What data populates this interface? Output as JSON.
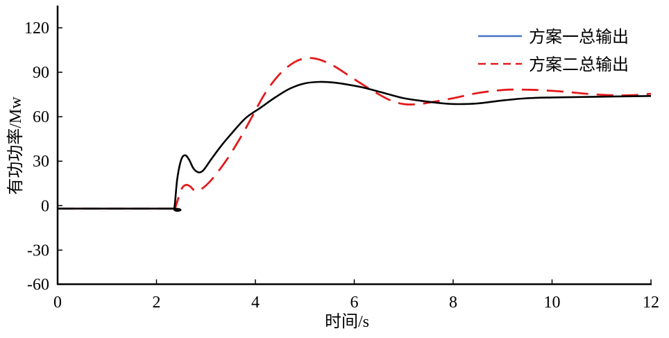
{
  "chart_data": {
    "type": "line",
    "title": "",
    "xlabel": "时间/s",
    "ylabel": "有功功率/Mw",
    "xlim": [
      0,
      12
    ],
    "ylim": [
      -53,
      135
    ],
    "xticks": [
      0,
      2,
      4,
      6,
      8,
      10,
      12
    ],
    "yticks": [
      120,
      90,
      60,
      30,
      0,
      -30,
      -60
    ],
    "grid": false,
    "legend_position": "top-right",
    "series": [
      {
        "name": "方案一总输出",
        "legend_color": "#4472c4",
        "line_color": "#000000",
        "dash": "solid",
        "x": [
          0,
          2.3,
          2.36,
          2.42,
          2.5,
          2.58,
          2.66,
          2.75,
          2.85,
          2.95,
          3.1,
          3.3,
          3.5,
          3.8,
          4.1,
          4.4,
          4.7,
          5.0,
          5.3,
          5.6,
          5.9,
          6.2,
          6.6,
          7.0,
          7.4,
          7.8,
          8.1,
          8.5,
          9.0,
          9.5,
          10.0,
          11.0,
          12.0
        ],
        "y": [
          -2,
          -2,
          -2,
          18,
          31,
          34,
          31,
          25,
          22.5,
          24,
          31,
          40,
          48,
          59,
          66,
          73,
          79,
          82.5,
          83.5,
          83,
          81.5,
          79.5,
          76,
          72.5,
          70.5,
          69,
          68.5,
          69,
          71,
          72.5,
          73,
          73.5,
          74
        ]
      },
      {
        "name": "方案二总输出",
        "legend_color": "#e31a1c",
        "line_color": "#e31a1c",
        "dash": "dashed",
        "x": [
          0,
          2.3,
          2.37,
          2.45,
          2.52,
          2.6,
          2.68,
          2.78,
          2.9,
          3.1,
          3.4,
          3.7,
          3.9,
          4.2,
          4.5,
          4.8,
          5.05,
          5.3,
          5.6,
          5.9,
          6.3,
          6.7,
          7.0,
          7.3,
          7.6,
          8.0,
          8.5,
          9.0,
          9.3,
          9.7,
          10.2,
          10.7,
          11.2,
          11.6,
          12.0
        ],
        "y": [
          -2,
          -2,
          -2,
          6,
          12,
          14,
          13,
          10,
          11,
          17,
          30,
          46,
          58,
          76,
          89,
          97,
          99.5,
          98.5,
          94,
          87.5,
          79,
          71.5,
          68.5,
          68.5,
          70,
          72.5,
          76,
          78,
          78.3,
          78,
          77,
          75.5,
          74.5,
          74.5,
          75.5
        ]
      }
    ]
  }
}
